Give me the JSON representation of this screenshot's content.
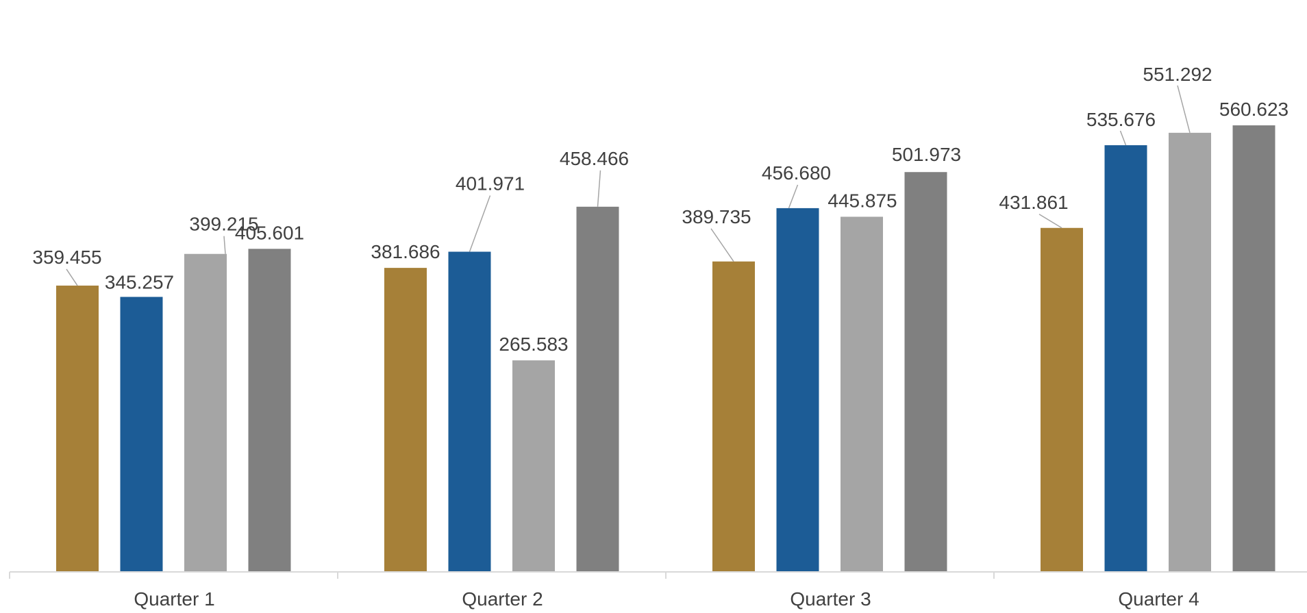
{
  "chart_data": {
    "type": "bar",
    "title": "",
    "xlabel": "",
    "ylabel": "",
    "categories": [
      "Quarter 1",
      "Quarter 2",
      "Quarter 3",
      "Quarter 4"
    ],
    "series": [
      {
        "color": "#A68038",
        "values": [
          359.455,
          381.686,
          389.735,
          431.861
        ]
      },
      {
        "color": "#1C5C96",
        "values": [
          345.257,
          401.971,
          456.68,
          535.676
        ]
      },
      {
        "color": "#A5A5A5",
        "values": [
          399.215,
          265.583,
          445.875,
          551.292
        ]
      },
      {
        "color": "#808080",
        "values": [
          405.601,
          458.466,
          501.973,
          560.623
        ]
      }
    ],
    "data_labels": [
      [
        "359.455",
        "381.686",
        "389.735",
        "431.861"
      ],
      [
        "345.257",
        "401.971",
        "456.680",
        "535.676"
      ],
      [
        "399.215",
        "265.583",
        "445.875",
        "551.292"
      ],
      [
        "405.601",
        "458.466",
        "501.973",
        "560.623"
      ]
    ],
    "ylim": [
      0,
      640
    ],
    "grid": false,
    "legend": "none"
  }
}
